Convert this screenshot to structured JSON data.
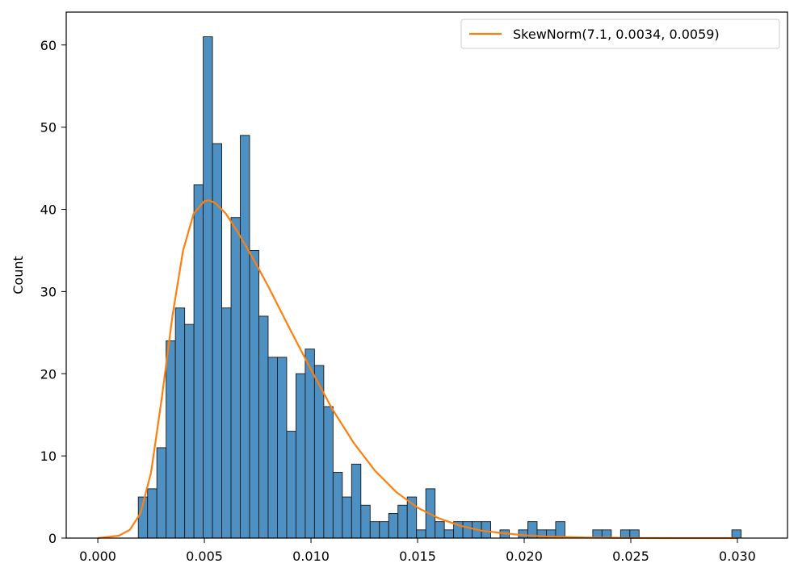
{
  "chart_data": {
    "type": "bar",
    "title": "",
    "xlabel": "",
    "ylabel": "Count",
    "xlim": [
      -0.00148,
      0.03235
    ],
    "ylim": [
      0,
      64
    ],
    "grid": false,
    "legend_placement": "top-right",
    "x_ticks": [
      0.0,
      0.005,
      0.01,
      0.015,
      0.02,
      0.025,
      0.03
    ],
    "x_tick_labels": [
      "0.000",
      "0.005",
      "0.010",
      "0.015",
      "0.020",
      "0.025",
      "0.030"
    ],
    "y_ticks": [
      0,
      10,
      20,
      30,
      40,
      50,
      60
    ],
    "y_tick_labels": [
      "0",
      "10",
      "20",
      "30",
      "40",
      "50",
      "60"
    ],
    "histogram": {
      "bin_start": 0.0019,
      "bin_width": 0.000435,
      "counts": [
        5,
        6,
        11,
        24,
        28,
        26,
        43,
        61,
        48,
        28,
        39,
        49,
        35,
        27,
        22,
        22,
        13,
        20,
        23,
        21,
        16,
        8,
        5,
        9,
        4,
        2,
        2,
        3,
        4,
        5,
        1,
        6,
        2,
        1,
        2,
        2,
        2,
        2,
        0,
        1,
        0,
        1,
        2,
        1,
        1,
        2,
        0,
        0,
        0,
        1,
        1,
        0,
        1,
        1,
        0,
        0,
        0,
        0,
        0,
        0,
        0,
        0,
        0,
        0,
        1
      ],
      "color": "#4f90c2",
      "edge_color": "#1a1a1a"
    },
    "series": [
      {
        "name": "SkewNorm(7.1, 0.0034, 0.0059)",
        "type": "line",
        "color": "#ff7f0e",
        "x": [
          0.0,
          0.001,
          0.0015,
          0.002,
          0.0025,
          0.003,
          0.0035,
          0.004,
          0.0045,
          0.005,
          0.0052,
          0.0055,
          0.006,
          0.0065,
          0.007,
          0.0075,
          0.008,
          0.009,
          0.01,
          0.011,
          0.012,
          0.013,
          0.014,
          0.015,
          0.016,
          0.017,
          0.018,
          0.019,
          0.02,
          0.021,
          0.022,
          0.023,
          0.025,
          0.027,
          0.03
        ],
        "y": [
          0.0,
          0.3,
          1.0,
          3.0,
          8.0,
          17.0,
          27.0,
          35.0,
          39.5,
          41.0,
          41.1,
          40.8,
          39.5,
          37.5,
          35.3,
          33.0,
          30.6,
          25.5,
          20.5,
          15.7,
          11.6,
          8.2,
          5.6,
          3.7,
          2.4,
          1.5,
          0.9,
          0.6,
          0.35,
          0.2,
          0.12,
          0.07,
          0.02,
          0.0,
          0.0
        ]
      }
    ]
  }
}
